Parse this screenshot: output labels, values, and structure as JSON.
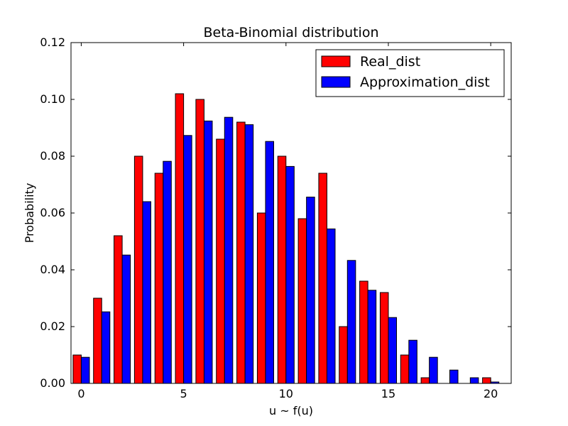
{
  "chart_data": {
    "type": "bar",
    "title": "Beta-Binomial distribution",
    "xlabel": "u ~ f(u)",
    "ylabel": "Probability",
    "xlim": [
      -0.5,
      21
    ],
    "ylim": [
      0,
      0.12
    ],
    "xticks": [
      0,
      5,
      10,
      15,
      20
    ],
    "yticks": [
      0.0,
      0.02,
      0.04,
      0.06,
      0.08,
      0.1,
      0.12
    ],
    "ytick_labels": [
      "0.00",
      "0.02",
      "0.04",
      "0.06",
      "0.08",
      "0.10",
      "0.12"
    ],
    "xtick_labels": [
      "0",
      "5",
      "10",
      "15",
      "20"
    ],
    "legend_position": "top-right",
    "x": [
      0,
      1,
      2,
      3,
      4,
      5,
      6,
      7,
      8,
      9,
      10,
      11,
      12,
      13,
      14,
      15,
      16,
      17,
      18,
      19,
      20
    ],
    "series": [
      {
        "name": "Real_dist",
        "color": "#ff0000",
        "values": [
          0.01,
          0.03,
          0.052,
          0.08,
          0.074,
          0.102,
          0.1,
          0.086,
          0.092,
          0.06,
          0.08,
          0.058,
          0.074,
          0.02,
          0.036,
          0.032,
          0.01,
          0.002,
          0.0,
          0.0,
          0.002
        ]
      },
      {
        "name": "Approximation_dist",
        "color": "#0000ff",
        "values": [
          0.0092,
          0.0252,
          0.0452,
          0.064,
          0.0782,
          0.0873,
          0.0924,
          0.0937,
          0.0911,
          0.0852,
          0.0764,
          0.0656,
          0.0544,
          0.0433,
          0.0328,
          0.0232,
          0.0152,
          0.0092,
          0.0047,
          0.002,
          0.0005
        ]
      }
    ]
  }
}
